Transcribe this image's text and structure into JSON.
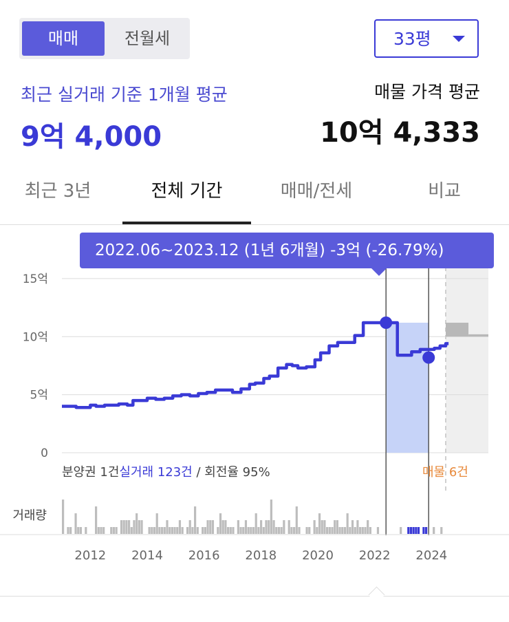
{
  "deal_type_toggle": {
    "sale_label": "매매",
    "rent_label": "전월세",
    "selected": "매매"
  },
  "area_select": {
    "value": "33평"
  },
  "summary": {
    "recent_label": "최근 실거래 기준 1개월 평균",
    "recent_value": "9억 4,000",
    "listing_label": "매물 가격 평균",
    "listing_value": "10억 4,333"
  },
  "tabs": [
    {
      "label": "최근 3년",
      "active": false
    },
    {
      "label": "전체 기간",
      "active": true
    },
    {
      "label": "매매/전세",
      "active": false
    },
    {
      "label": "비교",
      "active": false
    }
  ],
  "tooltip": {
    "text": "2022.06~2023.12 (1년 6개월)  -3억 (-26.79%)"
  },
  "colors": {
    "accent": "#3a3ad6",
    "tooltip_bg": "#5b5bdb",
    "selection_fill": "#c6d3f8",
    "listing_gray": "#b8b8b8",
    "listing_label": "#e8893a",
    "volume_gray": "#bdbdbd"
  },
  "chart_data": {
    "type": "line",
    "y_tick_labels": [
      "15억",
      "10억",
      "5억",
      "0"
    ],
    "y_ticks": [
      15,
      10,
      5,
      0
    ],
    "ylim": [
      0,
      16
    ],
    "xlim": [
      2011.0,
      2026.0
    ],
    "x_tick_labels": [
      "2012",
      "2014",
      "2016",
      "2018",
      "2020",
      "2022",
      "2024"
    ],
    "x_ticks": [
      2012,
      2014,
      2016,
      2018,
      2020,
      2022,
      2024
    ],
    "grid": true,
    "series": [
      {
        "x": [
          2011.0,
          2011.2,
          2011.5,
          2011.8,
          2012.0,
          2012.2,
          2012.5,
          2012.8,
          2013.0,
          2013.1,
          2013.3,
          2013.5,
          2013.8,
          2014.0,
          2014.3,
          2014.6,
          2014.9,
          2015.2,
          2015.5,
          2015.8,
          2016.1,
          2016.4,
          2016.7,
          2017.0,
          2017.3,
          2017.6,
          2017.8,
          2018.1,
          2018.3,
          2018.6,
          2018.9,
          2019.1,
          2019.3,
          2019.6,
          2019.9,
          2020.1,
          2020.4,
          2020.7,
          2021.0,
          2021.3,
          2021.6,
          2021.9,
          2022.2,
          2022.4,
          2022.7,
          2022.8,
          2023.0,
          2023.3,
          2023.6,
          2023.9,
          2024.1,
          2024.3,
          2024.5,
          2024.6
        ],
        "y": [
          4.0,
          4.0,
          3.9,
          3.9,
          4.1,
          4.0,
          4.1,
          4.1,
          4.2,
          4.2,
          4.1,
          4.5,
          4.5,
          4.7,
          4.6,
          4.7,
          4.9,
          5.0,
          4.9,
          5.1,
          5.2,
          5.4,
          5.4,
          5.2,
          5.5,
          5.9,
          6.0,
          6.4,
          6.6,
          7.3,
          7.6,
          7.5,
          7.3,
          7.4,
          8.0,
          8.6,
          9.2,
          9.5,
          9.5,
          10.1,
          11.2,
          11.2,
          11.2,
          11.2,
          11.2,
          8.4,
          8.4,
          8.7,
          8.9,
          8.9,
          9.0,
          9.2,
          9.4,
          9.4
        ]
      }
    ],
    "selection": {
      "x_start": 2022.4,
      "x_end": 2023.9,
      "y_start": 11.2,
      "y_end": 8.2
    },
    "listing_blocks": [
      {
        "x_start": 2024.5,
        "x_end": 2025.3,
        "y_low": 10.0,
        "y_high": 11.2
      },
      {
        "x_start": 2025.3,
        "x_end": 2026.0,
        "y_low": 10.0,
        "y_high": 10.2
      }
    ],
    "footnote_prefix": "분양권 1건",
    "footnote_highlight": "실거래 123건",
    "footnote_suffix": " / 회전율 95%",
    "listing_note": "매물 6건",
    "volume_label": "거래량",
    "volume": [
      5,
      0,
      1,
      1,
      0,
      3,
      1,
      1,
      0,
      1,
      0,
      0,
      0,
      4,
      1,
      1,
      1,
      0,
      0,
      1,
      1,
      1,
      0,
      2,
      2,
      2,
      2,
      1,
      2,
      3,
      2,
      2,
      0,
      0,
      1,
      1,
      1,
      3,
      1,
      1,
      1,
      2,
      1,
      1,
      1,
      1,
      2,
      1,
      0,
      1,
      2,
      1,
      4,
      1,
      0,
      1,
      1,
      2,
      2,
      2,
      0,
      1,
      3,
      2,
      2,
      1,
      1,
      1,
      0,
      2,
      1,
      1,
      2,
      1,
      1,
      1,
      3,
      1,
      2,
      1,
      2,
      2,
      5,
      2,
      1,
      1,
      1,
      2,
      0,
      2,
      1,
      1,
      4,
      1,
      0,
      0,
      1,
      1,
      0,
      2,
      1,
      3,
      2,
      2,
      1,
      1,
      1,
      2,
      2,
      1,
      1,
      1,
      3,
      1,
      2,
      1,
      2,
      1,
      1,
      1,
      2,
      1,
      0,
      0,
      1,
      0,
      0,
      0,
      0,
      0,
      0,
      0,
      0,
      1,
      0,
      0,
      1,
      1,
      1,
      1,
      1,
      0,
      1,
      1,
      0,
      0,
      1,
      0,
      0,
      1
    ]
  }
}
